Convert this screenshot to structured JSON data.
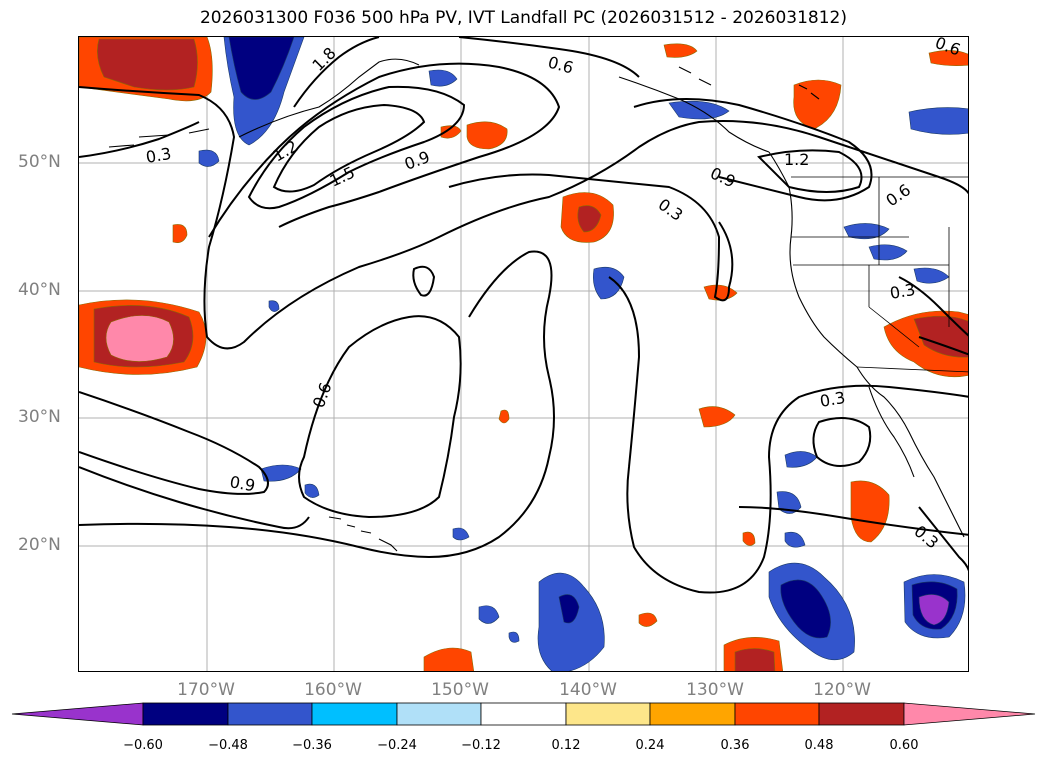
{
  "title": "2026031300 F036 500 hPa PV, IVT Landfall PC (2026031512 - 2026031812)",
  "lat_labels": [
    "50°N",
    "40°N",
    "30°N",
    "20°N"
  ],
  "lon_labels": [
    "170°W",
    "160°W",
    "150°W",
    "140°W",
    "130°W",
    "120°W"
  ],
  "contour_labels": {
    "c_0_3_a": "0.3",
    "c_1_2_a": "1.2",
    "c_1_5": "1.5",
    "c_1_8": "1.8",
    "c_0_9_a": "0.9",
    "c_0_6_a": "0.6",
    "c_0_3_b": "0.3",
    "c_0_9_b": "0.9",
    "c_1_2_b": "1.2",
    "c_0_6_b": "0.6",
    "c_0_6_c": "0.6",
    "c_0_3_c": "0.3",
    "c_0_6_d": "0.6",
    "c_0_9_c": "0.9",
    "c_0_3_d": "0.3",
    "c_0_3_e": "0.3"
  },
  "colorbar": {
    "ticks": [
      "−0.60",
      "−0.48",
      "−0.36",
      "−0.24",
      "−0.12",
      "0.12",
      "0.24",
      "0.36",
      "0.48",
      "0.60"
    ],
    "colors": {
      "neg_extend": "#9933cc",
      "neg_060": "#000080",
      "neg_048": "#3355cc",
      "neg_036": "#00bfff",
      "neg_024": "#b0e0f8",
      "neutral": "#ffffff",
      "pos_012": "#fde68a",
      "pos_024": "#ffa500",
      "pos_036": "#ff4500",
      "pos_048": "#b22222",
      "pos_extend": "#ff88aa"
    }
  }
}
